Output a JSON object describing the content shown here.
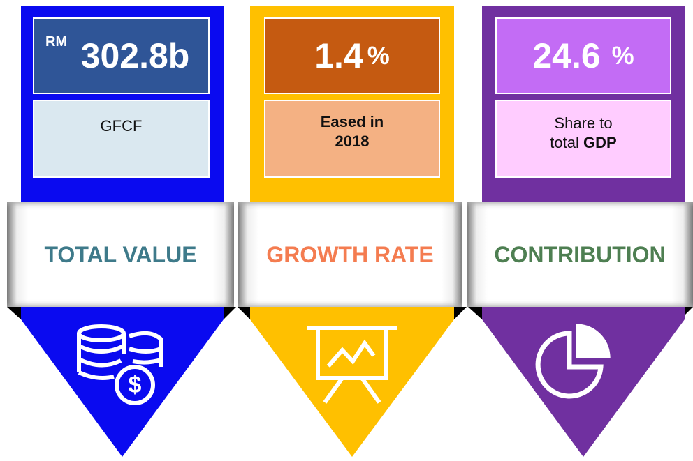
{
  "panels": [
    {
      "prefix": "RM",
      "value": "302.8b",
      "caption": "GFCF",
      "label": "TOTAL VALUE"
    },
    {
      "value": "1.4",
      "unit": "%",
      "caption_bold": "Eased in 2018",
      "label": "GROWTH RATE"
    },
    {
      "value": "24.6",
      "unit": "%",
      "caption": "Share to total",
      "caption_bold": "GDP",
      "label": "CONTRIBUTION"
    }
  ]
}
